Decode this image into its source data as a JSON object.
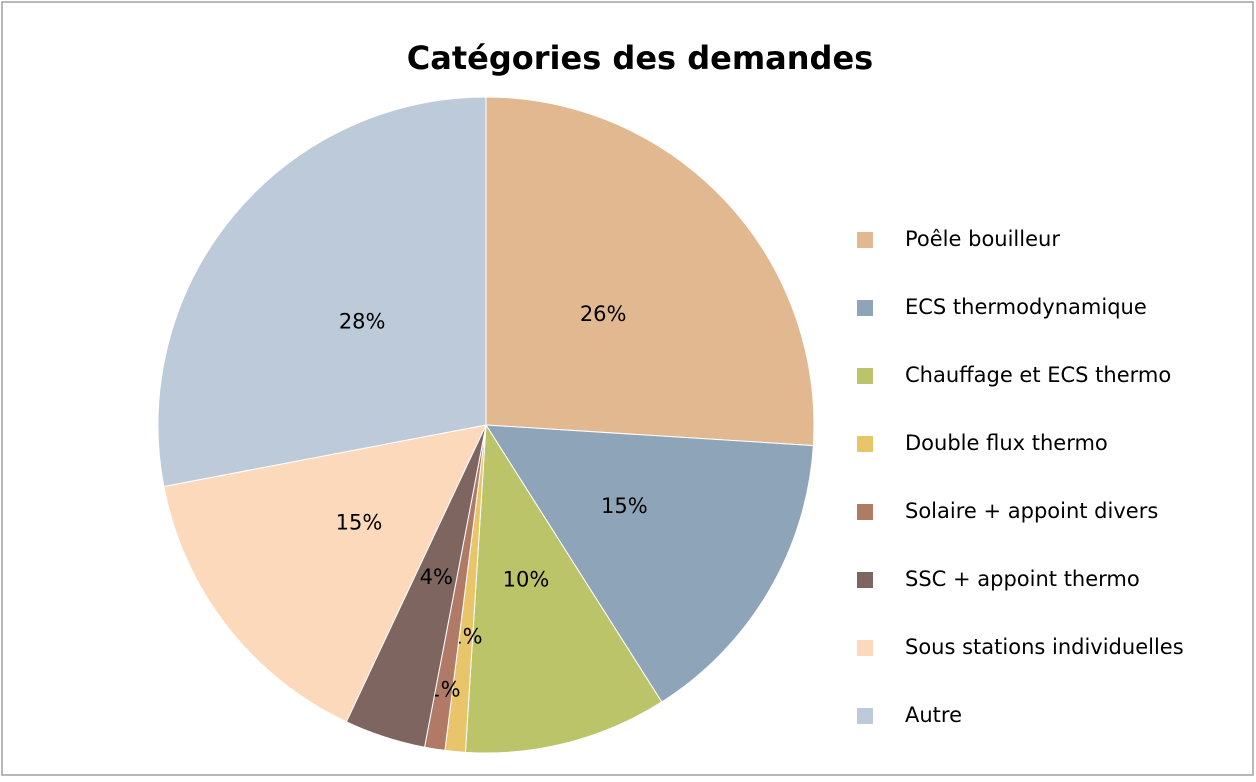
{
  "chart_data": {
    "type": "pie",
    "title": "Catégories des demandes",
    "categories": [
      "Poêle bouilleur",
      "ECS thermodynamique",
      "Chauffage et ECS thermo",
      "Double flux thermo",
      "Solaire + appoint divers",
      "SSC + appoint thermo",
      "Sous stations individuelles",
      "Autre"
    ],
    "values": [
      26,
      15,
      10,
      1,
      1,
      4,
      15,
      28
    ],
    "value_labels": [
      "26%",
      "15%",
      "10%",
      "1%",
      "1%",
      "4%",
      "15%",
      "28%"
    ],
    "colors": [
      "#e2b890",
      "#8ea4b8",
      "#bcc46a",
      "#e8c46a",
      "#b07a66",
      "#7e6560",
      "#fdd9bc",
      "#bccada"
    ],
    "legend": "right"
  }
}
